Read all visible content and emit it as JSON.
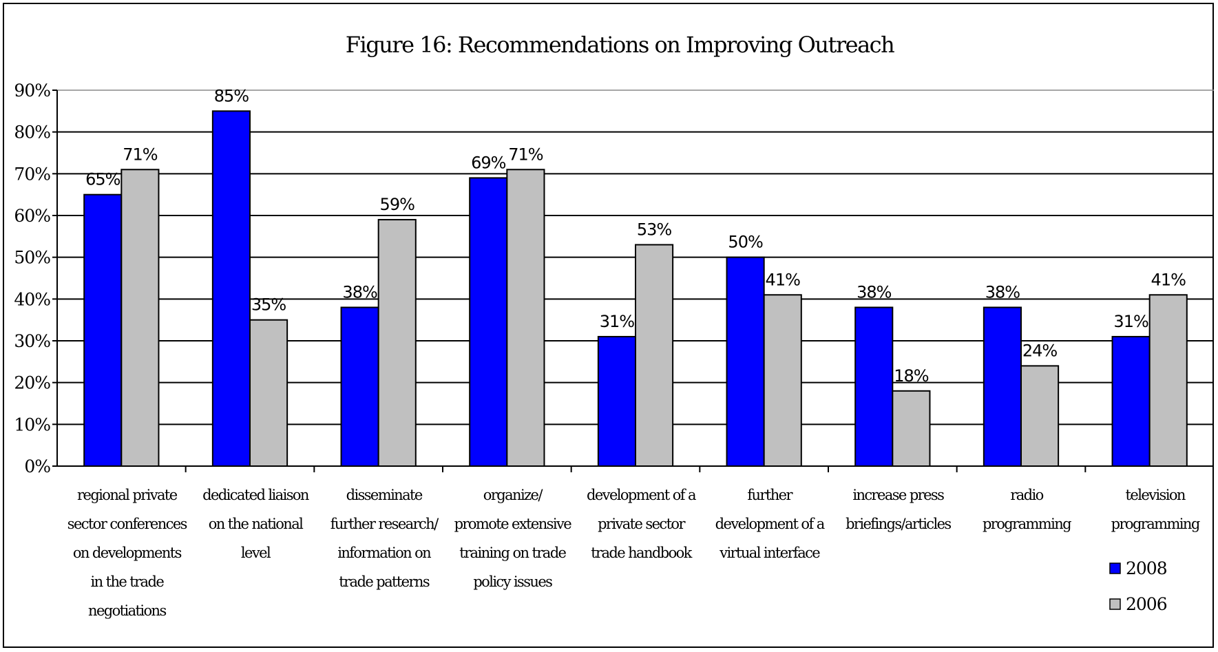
{
  "chart_data": {
    "type": "bar",
    "title": "Figure 16: Recommendations on Improving Outreach",
    "ylim": [
      0,
      90
    ],
    "yticks": [
      "0%",
      "10%",
      "20%",
      "30%",
      "40%",
      "50%",
      "60%",
      "70%",
      "80%",
      "90%"
    ],
    "grid": true,
    "legend_position": "bottom-right",
    "categories": [
      [
        "regional private",
        "sector conferences",
        "on developments",
        "in the trade",
        "negotiations"
      ],
      [
        "dedicated liaison",
        "on the national",
        "level"
      ],
      [
        "disseminate",
        "further research/",
        "information on",
        "trade patterns"
      ],
      [
        "organize/",
        "promote extensive",
        "training on trade",
        "policy issues"
      ],
      [
        "development of a",
        "private sector",
        "trade handbook"
      ],
      [
        "further",
        "development of a",
        "virtual interface"
      ],
      [
        "increase press",
        "briefings/articles"
      ],
      [
        "radio",
        "programming"
      ],
      [
        "television",
        "programming"
      ]
    ],
    "series": [
      {
        "name": "2008",
        "color": "#0000ff",
        "values": [
          65,
          85,
          38,
          69,
          31,
          50,
          38,
          38,
          31
        ],
        "labels": [
          "65%",
          "85%",
          "38%",
          "69%",
          "31%",
          "50%",
          "38%",
          "38%",
          "31%"
        ]
      },
      {
        "name": "2006",
        "color": "#c0c0c0",
        "values": [
          71,
          35,
          59,
          71,
          53,
          41,
          18,
          24,
          41
        ],
        "labels": [
          "71%",
          "35%",
          "59%",
          "71%",
          "53%",
          "41%",
          "18%",
          "24%",
          "41%"
        ]
      }
    ]
  }
}
